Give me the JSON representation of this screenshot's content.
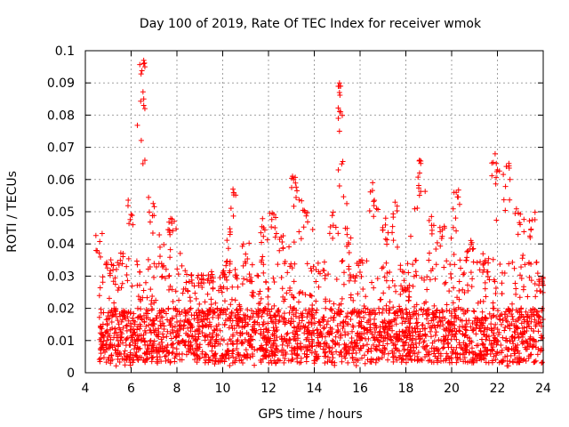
{
  "chart_data": {
    "type": "scatter",
    "title": "Day 100 of 2019, Rate Of TEC Index for receiver wmok",
    "xlabel": "GPS time / hours",
    "ylabel": "ROTI / TECUs",
    "xlim": [
      4,
      24
    ],
    "ylim": [
      0,
      0.1
    ],
    "x_ticks": [
      "4",
      "6",
      "8",
      "10",
      "12",
      "14",
      "16",
      "18",
      "20",
      "22",
      "24"
    ],
    "y_ticks": [
      "0",
      "0.01",
      "0.02",
      "0.03",
      "0.04",
      "0.05",
      "0.06",
      "0.07",
      "0.08",
      "0.09",
      "0.1"
    ],
    "grid": true,
    "marker": "+",
    "color": "#ff0000",
    "series": [
      {
        "name": "ROTI",
        "x_range": [
          4.6,
          24.0
        ],
        "dense_band": [
          0.003,
          0.02
        ],
        "envelope": [
          {
            "x": 4.6,
            "y": 0.045
          },
          {
            "x": 5.0,
            "y": 0.037
          },
          {
            "x": 5.5,
            "y": 0.039
          },
          {
            "x": 6.0,
            "y": 0.056
          },
          {
            "x": 6.5,
            "y": 0.097
          },
          {
            "x": 6.9,
            "y": 0.057
          },
          {
            "x": 7.3,
            "y": 0.04
          },
          {
            "x": 7.8,
            "y": 0.051
          },
          {
            "x": 8.5,
            "y": 0.031
          },
          {
            "x": 9.2,
            "y": 0.031
          },
          {
            "x": 10.0,
            "y": 0.032
          },
          {
            "x": 10.5,
            "y": 0.057
          },
          {
            "x": 11.0,
            "y": 0.04
          },
          {
            "x": 11.8,
            "y": 0.048
          },
          {
            "x": 12.2,
            "y": 0.051
          },
          {
            "x": 12.6,
            "y": 0.043
          },
          {
            "x": 13.1,
            "y": 0.061
          },
          {
            "x": 13.6,
            "y": 0.054
          },
          {
            "x": 14.3,
            "y": 0.035
          },
          {
            "x": 14.8,
            "y": 0.049
          },
          {
            "x": 15.1,
            "y": 0.09
          },
          {
            "x": 15.5,
            "y": 0.045
          },
          {
            "x": 16.0,
            "y": 0.035
          },
          {
            "x": 16.6,
            "y": 0.059
          },
          {
            "x": 17.1,
            "y": 0.048
          },
          {
            "x": 17.5,
            "y": 0.053
          },
          {
            "x": 18.0,
            "y": 0.03
          },
          {
            "x": 18.6,
            "y": 0.066
          },
          {
            "x": 19.1,
            "y": 0.05
          },
          {
            "x": 19.6,
            "y": 0.047
          },
          {
            "x": 20.2,
            "y": 0.057
          },
          {
            "x": 20.8,
            "y": 0.042
          },
          {
            "x": 21.5,
            "y": 0.037
          },
          {
            "x": 21.9,
            "y": 0.068
          },
          {
            "x": 22.4,
            "y": 0.065
          },
          {
            "x": 22.9,
            "y": 0.051
          },
          {
            "x": 23.5,
            "y": 0.05
          },
          {
            "x": 24.0,
            "y": 0.03
          }
        ],
        "spikes": [
          {
            "x": 6.55,
            "y": 0.097
          },
          {
            "x": 6.55,
            "y": 0.096
          },
          {
            "x": 6.6,
            "y": 0.095
          },
          {
            "x": 6.55,
            "y": 0.085
          },
          {
            "x": 6.55,
            "y": 0.083
          },
          {
            "x": 6.6,
            "y": 0.082
          },
          {
            "x": 6.6,
            "y": 0.066
          },
          {
            "x": 15.1,
            "y": 0.09
          },
          {
            "x": 15.15,
            "y": 0.089
          },
          {
            "x": 15.1,
            "y": 0.087
          },
          {
            "x": 15.15,
            "y": 0.081
          },
          {
            "x": 15.05,
            "y": 0.079
          },
          {
            "x": 15.1,
            "y": 0.075
          },
          {
            "x": 15.05,
            "y": 0.063
          },
          {
            "x": 15.1,
            "y": 0.058
          },
          {
            "x": 18.6,
            "y": 0.066
          },
          {
            "x": 18.65,
            "y": 0.065
          },
          {
            "x": 18.6,
            "y": 0.062
          },
          {
            "x": 21.9,
            "y": 0.068
          },
          {
            "x": 21.95,
            "y": 0.065
          },
          {
            "x": 22.0,
            "y": 0.063
          },
          {
            "x": 22.5,
            "y": 0.065
          },
          {
            "x": 22.55,
            "y": 0.06
          },
          {
            "x": 13.05,
            "y": 0.061
          },
          {
            "x": 13.1,
            "y": 0.06
          },
          {
            "x": 10.45,
            "y": 0.057
          },
          {
            "x": 20.2,
            "y": 0.056
          },
          {
            "x": 16.55,
            "y": 0.059
          }
        ]
      }
    ]
  }
}
